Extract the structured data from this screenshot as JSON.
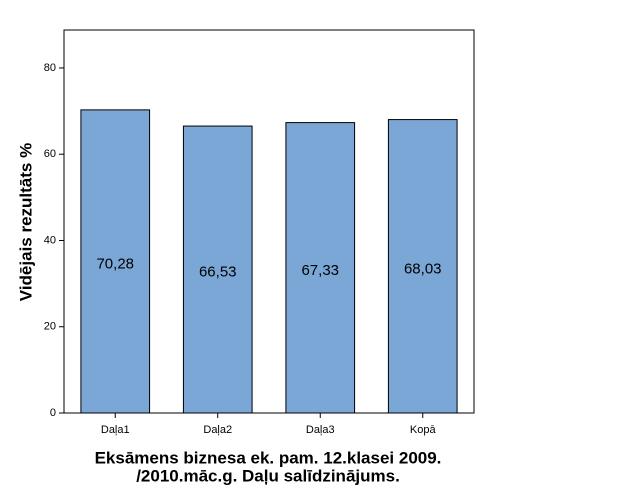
{
  "chart_data": {
    "type": "bar",
    "categories": [
      "Daļa1",
      "Daļa2",
      "Daļa3",
      "Kopā"
    ],
    "values": [
      70.28,
      66.53,
      67.33,
      68.03
    ],
    "value_labels": [
      "70,28",
      "66,53",
      "67,33",
      "68,03"
    ],
    "color": "#7aa7d6",
    "ylim": [
      0,
      88.8
    ],
    "yticks": [
      0,
      20,
      40,
      60,
      80
    ],
    "ylabel": "Vidējais rezultāts %",
    "xlabel": [
      "Eksāmens biznesa ek. pam. 12.klasei 2009.",
      "/2010.māc.g. Daļu salīdzinājums."
    ]
  }
}
